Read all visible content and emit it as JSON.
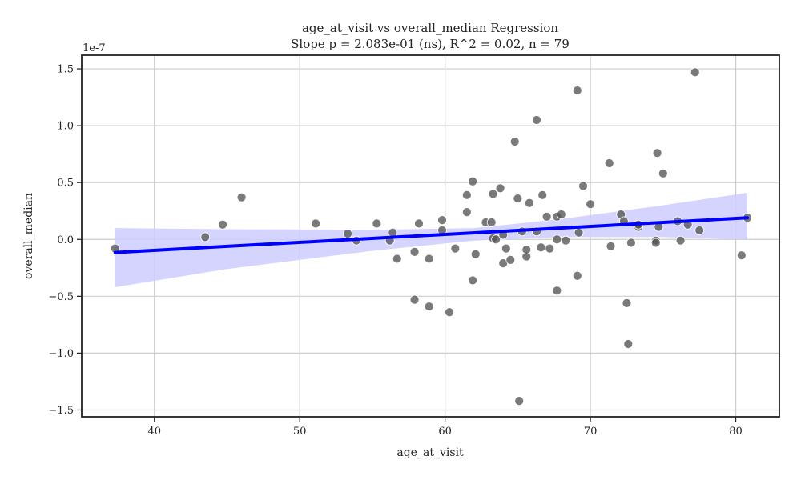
{
  "chart_data": {
    "type": "scatter",
    "title_line1": "age_at_visit vs overall_median Regression",
    "title_line2": "Slope p = 2.083e-01 (ns), R^2 = 0.02, n = 79",
    "xlabel": "age_at_visit",
    "ylabel": "overall_median",
    "y_offset_label": "1e-7",
    "xlim": [
      35,
      83
    ],
    "ylim": [
      -1.56,
      1.62
    ],
    "x_ticks": [
      40,
      50,
      60,
      70,
      80
    ],
    "x_tick_labels": [
      "40",
      "50",
      "60",
      "70",
      "80"
    ],
    "y_ticks": [
      -1.5,
      -1.0,
      -0.5,
      0.0,
      0.5,
      1.0,
      1.5
    ],
    "y_tick_labels": [
      "−1.5",
      "−1.0",
      "−0.5",
      "0.0",
      "0.5",
      "1.0",
      "1.5"
    ],
    "grid": true,
    "colors": {
      "points": "#555555",
      "line": "#0000ff",
      "band": "#ccccff",
      "grid": "#cccccc",
      "axes": "#222222"
    },
    "regression": {
      "x": [
        37.3,
        80.8
      ],
      "y": [
        -0.115,
        0.19
      ]
    },
    "confidence_band": {
      "x": [
        37.3,
        45,
        55,
        62,
        68,
        75,
        80.8
      ],
      "lower": [
        -0.42,
        -0.26,
        -0.1,
        -0.01,
        0.02,
        0.02,
        0.0
      ],
      "upper": [
        0.1,
        0.09,
        0.085,
        0.1,
        0.18,
        0.3,
        0.41
      ]
    },
    "points": [
      {
        "x": 37.3,
        "y": -0.08
      },
      {
        "x": 43.5,
        "y": 0.02
      },
      {
        "x": 44.7,
        "y": 0.13
      },
      {
        "x": 46.0,
        "y": 0.37
      },
      {
        "x": 51.1,
        "y": 0.14
      },
      {
        "x": 53.3,
        "y": 0.05
      },
      {
        "x": 53.9,
        "y": -0.01
      },
      {
        "x": 55.3,
        "y": 0.14
      },
      {
        "x": 56.2,
        "y": -0.01
      },
      {
        "x": 56.4,
        "y": 0.06
      },
      {
        "x": 56.7,
        "y": -0.17
      },
      {
        "x": 57.9,
        "y": -0.11
      },
      {
        "x": 57.9,
        "y": -0.53
      },
      {
        "x": 58.2,
        "y": 0.14
      },
      {
        "x": 58.9,
        "y": -0.59
      },
      {
        "x": 58.9,
        "y": -0.17
      },
      {
        "x": 59.8,
        "y": 0.17
      },
      {
        "x": 59.8,
        "y": 0.08
      },
      {
        "x": 60.3,
        "y": -0.64
      },
      {
        "x": 60.7,
        "y": -0.08
      },
      {
        "x": 61.5,
        "y": 0.39
      },
      {
        "x": 61.5,
        "y": 0.24
      },
      {
        "x": 61.9,
        "y": 0.51
      },
      {
        "x": 61.9,
        "y": -0.36
      },
      {
        "x": 62.1,
        "y": -0.13
      },
      {
        "x": 62.8,
        "y": 0.15
      },
      {
        "x": 63.2,
        "y": 0.15
      },
      {
        "x": 63.3,
        "y": 0.01
      },
      {
        "x": 63.3,
        "y": 0.4
      },
      {
        "x": 63.5,
        "y": 0.0
      },
      {
        "x": 63.8,
        "y": 0.45
      },
      {
        "x": 64.0,
        "y": 0.04
      },
      {
        "x": 64.0,
        "y": -0.21
      },
      {
        "x": 64.2,
        "y": -0.08
      },
      {
        "x": 64.5,
        "y": -0.18
      },
      {
        "x": 64.8,
        "y": 0.86
      },
      {
        "x": 65.0,
        "y": 0.36
      },
      {
        "x": 65.1,
        "y": -1.42
      },
      {
        "x": 65.3,
        "y": 0.07
      },
      {
        "x": 65.6,
        "y": -0.15
      },
      {
        "x": 65.6,
        "y": -0.09
      },
      {
        "x": 65.8,
        "y": 0.32
      },
      {
        "x": 66.3,
        "y": 1.05
      },
      {
        "x": 66.3,
        "y": 0.07
      },
      {
        "x": 66.6,
        "y": -0.07
      },
      {
        "x": 66.7,
        "y": 0.39
      },
      {
        "x": 67.0,
        "y": 0.2
      },
      {
        "x": 67.2,
        "y": -0.08
      },
      {
        "x": 67.7,
        "y": 0.2
      },
      {
        "x": 67.7,
        "y": 0.0
      },
      {
        "x": 67.7,
        "y": -0.45
      },
      {
        "x": 68.0,
        "y": 0.22
      },
      {
        "x": 68.3,
        "y": -0.01
      },
      {
        "x": 69.1,
        "y": 1.31
      },
      {
        "x": 69.1,
        "y": -0.32
      },
      {
        "x": 69.2,
        "y": 0.06
      },
      {
        "x": 69.5,
        "y": 0.47
      },
      {
        "x": 70.0,
        "y": 0.31
      },
      {
        "x": 71.3,
        "y": 0.67
      },
      {
        "x": 71.4,
        "y": -0.06
      },
      {
        "x": 72.1,
        "y": 0.22
      },
      {
        "x": 72.3,
        "y": 0.16
      },
      {
        "x": 72.5,
        "y": -0.56
      },
      {
        "x": 72.6,
        "y": -0.92
      },
      {
        "x": 72.8,
        "y": -0.03
      },
      {
        "x": 73.3,
        "y": 0.11
      },
      {
        "x": 73.3,
        "y": 0.13
      },
      {
        "x": 74.5,
        "y": -0.01
      },
      {
        "x": 74.5,
        "y": -0.03
      },
      {
        "x": 74.6,
        "y": 0.76
      },
      {
        "x": 74.7,
        "y": 0.11
      },
      {
        "x": 75.0,
        "y": 0.58
      },
      {
        "x": 76.0,
        "y": 0.16
      },
      {
        "x": 76.2,
        "y": -0.01
      },
      {
        "x": 76.7,
        "y": 0.13
      },
      {
        "x": 77.2,
        "y": 1.47
      },
      {
        "x": 77.5,
        "y": 0.08
      },
      {
        "x": 80.4,
        "y": -0.14
      },
      {
        "x": 80.8,
        "y": 0.19
      }
    ]
  }
}
